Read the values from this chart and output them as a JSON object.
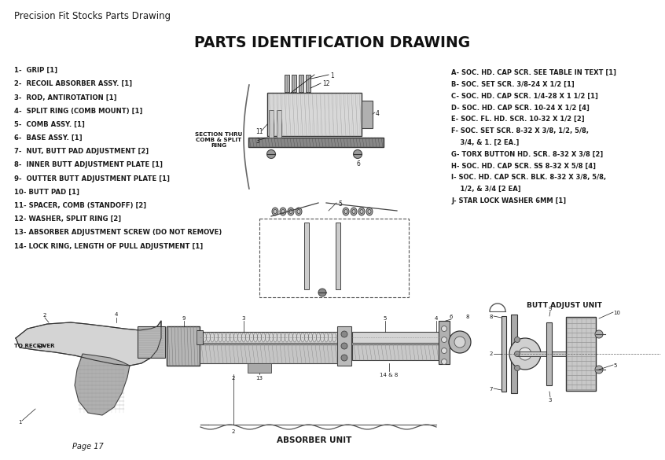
{
  "title_top": "Precision Fit Stocks Parts Drawing",
  "title_main": "PARTS IDENTIFICATION DRAWING",
  "bg_color": "#ffffff",
  "text_color": "#1a1a1a",
  "parts_left": [
    "1-  GRIP [1]",
    "2-  RECOIL ABSORBER ASSY. [1]",
    "3-  ROD, ANTIROTATION [1]",
    "4-  SPLIT RING (COMB MOUNT) [1]",
    "5-  COMB ASSY. [1]",
    "6-  BASE ASSY. [1]",
    "7-  NUT, BUTT PAD ADJUSTMENT [2]",
    "8-  INNER BUTT ADJUSTMENT PLATE [1]",
    "9-  OUTTER BUTT ADJUSTMENT PLATE [1]",
    "10- BUTT PAD [1]",
    "11- SPACER, COMB (STANDOFF) [2]",
    "12- WASHER, SPLIT RING [2]",
    "13- ABSORBER ADJUSTMENT SCREW (DO NOT REMOVE)",
    "14- LOCK RING, LENGTH OF PULL ADJUSTMENT [1]"
  ],
  "parts_right_lines": [
    "A- SOC. HD. CAP SCR. SEE TABLE IN TEXT [1]",
    "B- SOC. SET SCR. 3/8-24 X 1/2 [1]",
    "C- SOC. HD. CAP SCR. 1/4-28 X 1 1/2 [1]",
    "D- SOC. HD. CAP SCR. 10-24 X 1/2 [4]",
    "E- SOC. FL. HD. SCR. 10-32 X 1/2 [2]",
    "F- SOC. SET SCR. 8-32 X 3/8, 1/2, 5/8,",
    "    3/4, & 1. [2 EA.]",
    "G- TORX BUTTON HD. SCR. 8-32 X 3/8 [2]",
    "H- SOC. HD. CAP SCR. SS 8-32 X 5/8 [4]",
    "I- SOC. HD. CAP SCR. BLK. 8-32 X 3/8, 5/8,",
    "    1/2, & 3/4 [2 EA]",
    "J- STAR LOCK WASHER 6MM [1]"
  ],
  "section_label": "SECTION THRU\nCOMB & SPLIT\nRING",
  "absorber_unit_label": "ABSORBER UNIT",
  "butt_adjust_label": "BUTT ADJUST UNIT",
  "to_receiver_label": "TO RECEIVER",
  "page_label": "Page 17"
}
